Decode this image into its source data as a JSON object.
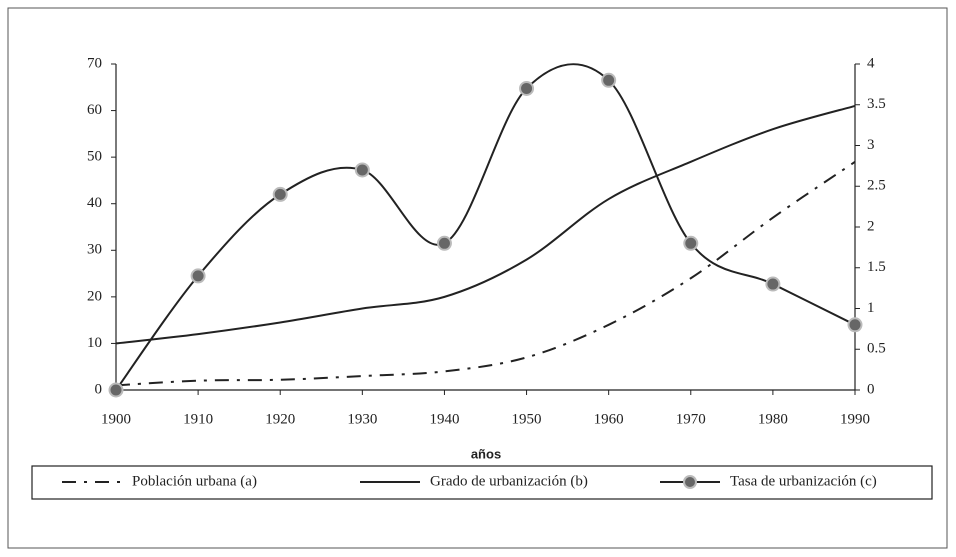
{
  "chart_data": {
    "type": "line",
    "x_label": "años",
    "x": [
      1900,
      1910,
      1920,
      1930,
      1940,
      1950,
      1960,
      1970,
      1980,
      1990
    ],
    "xlim": [
      1900,
      1990
    ],
    "xticks": [
      1900,
      1910,
      1920,
      1930,
      1940,
      1950,
      1960,
      1970,
      1980,
      1990
    ],
    "ylim": [
      0,
      70
    ],
    "yticks": [
      0,
      10,
      20,
      30,
      40,
      50,
      60,
      70
    ],
    "y2lim": [
      0,
      4
    ],
    "y2ticks": [
      0,
      0.5,
      1,
      1.5,
      2,
      2.5,
      3,
      3.5,
      4
    ],
    "legend": "bottom",
    "series": [
      {
        "name": "Población urbana (a)",
        "color": "#222222",
        "dash": "dash-dot",
        "marker": false,
        "values": [
          1,
          2,
          2.2,
          3,
          4,
          7,
          14,
          24,
          37,
          49
        ]
      },
      {
        "name": "Grado de urbanización (b)",
        "color": "#222222",
        "dash": "solid",
        "marker": false,
        "values": [
          10,
          12,
          14.5,
          17.5,
          20,
          28,
          41,
          49,
          56,
          61
        ]
      },
      {
        "name": "Tasa de urbanización (c)",
        "color": "#222222",
        "dash": "solid",
        "marker": true,
        "axis": "y2",
        "values": [
          0,
          1.4,
          2.4,
          2.7,
          1.8,
          3.7,
          3.8,
          1.8,
          1.3,
          0.8
        ]
      }
    ]
  }
}
